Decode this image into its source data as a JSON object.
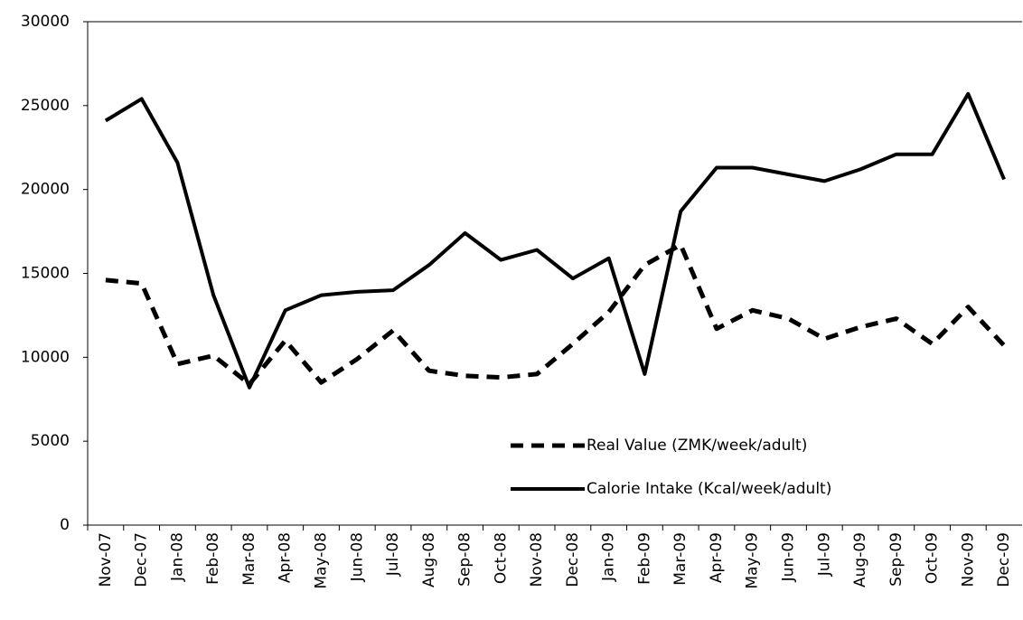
{
  "chart_data": {
    "type": "line",
    "categories": [
      "Nov-07",
      "Dec-07",
      "Jan-08",
      "Feb-08",
      "Mar-08",
      "Apr-08",
      "May-08",
      "Jun-08",
      "Jul-08",
      "Aug-08",
      "Sep-08",
      "Oct-08",
      "Nov-08",
      "Dec-08",
      "Jan-09",
      "Feb-09",
      "Mar-09",
      "Apr-09",
      "May-09",
      "Jun-09",
      "Jul-09",
      "Aug-09",
      "Sep-09",
      "Oct-09",
      "Nov-09",
      "Dec-09"
    ],
    "series": [
      {
        "name": "Real Value (ZMK/week/adult)",
        "color": "#000000",
        "dash": true,
        "values": [
          14600,
          14400,
          9600,
          10100,
          8400,
          11000,
          8500,
          9900,
          11600,
          9200,
          8900,
          8800,
          9000,
          10800,
          12700,
          15500,
          16700,
          11700,
          12800,
          12300,
          11100,
          11800,
          12300,
          10800,
          13000,
          10700
        ]
      },
      {
        "name": "Calorie Intake (Kcal/week/adult)",
        "color": "#000000",
        "dash": false,
        "values": [
          24100,
          25400,
          21600,
          13700,
          8200,
          12800,
          13700,
          13900,
          14000,
          15500,
          17400,
          15800,
          16400,
          14700,
          15900,
          9000,
          18700,
          21300,
          21300,
          20900,
          20500,
          21200,
          22100,
          22100,
          25700,
          20600
        ]
      }
    ],
    "ylim": [
      0,
      30000
    ],
    "yticks": [
      0,
      5000,
      10000,
      15000,
      20000,
      25000,
      30000
    ],
    "grid": false,
    "legend": "bottom-right"
  }
}
